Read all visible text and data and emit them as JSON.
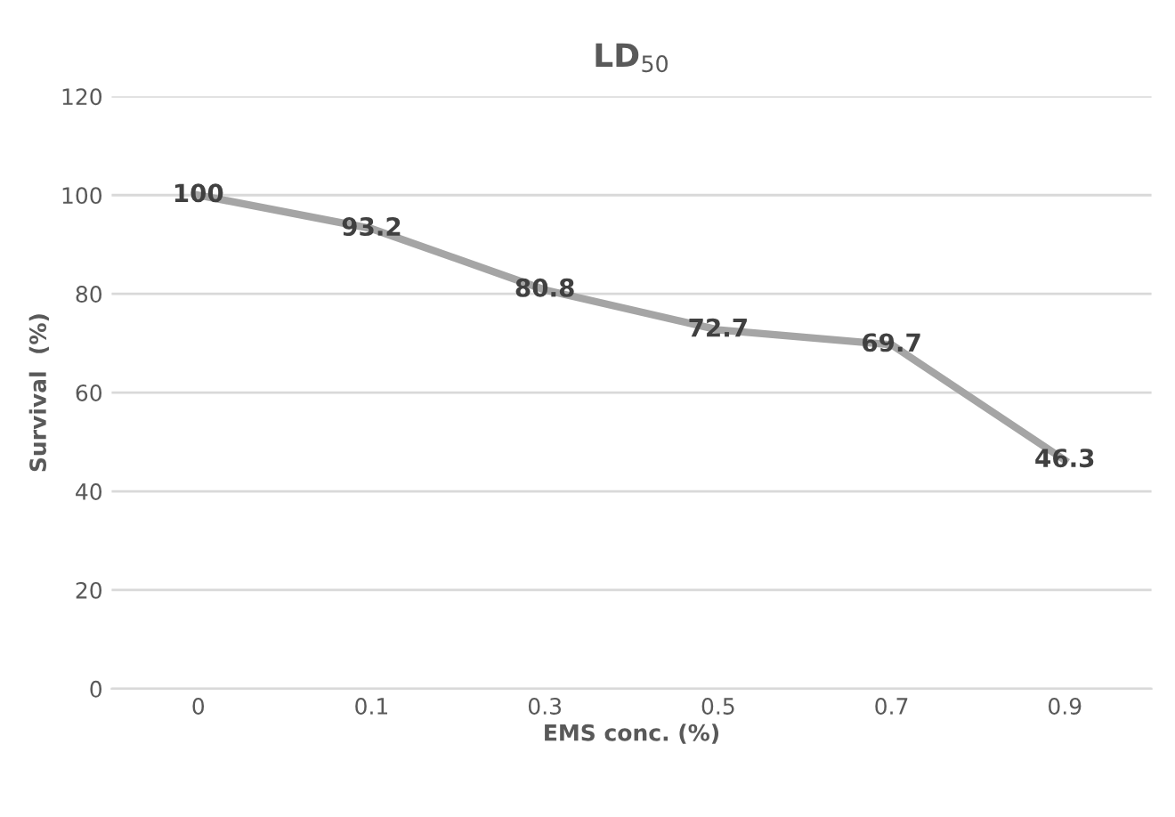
{
  "chart_data": {
    "type": "line",
    "title": "LD$_{50}$",
    "xlabel": "EMS conc. (%)",
    "ylabel": "Survival  (%)",
    "categories": [
      "0",
      "0.1",
      "0.3",
      "0.5",
      "0.7",
      "0.9"
    ],
    "series": [
      {
        "color": "#a5a5a5",
        "values": [
          100,
          93.2,
          80.8,
          72.7,
          69.7,
          46.3
        ]
      }
    ],
    "ylim": [
      0,
      120
    ],
    "yticks": [
      0,
      20,
      40,
      60,
      80,
      100,
      120
    ],
    "grid": "y",
    "data_labels": true,
    "marker": "none",
    "line_style": "solid",
    "legend": false
  }
}
